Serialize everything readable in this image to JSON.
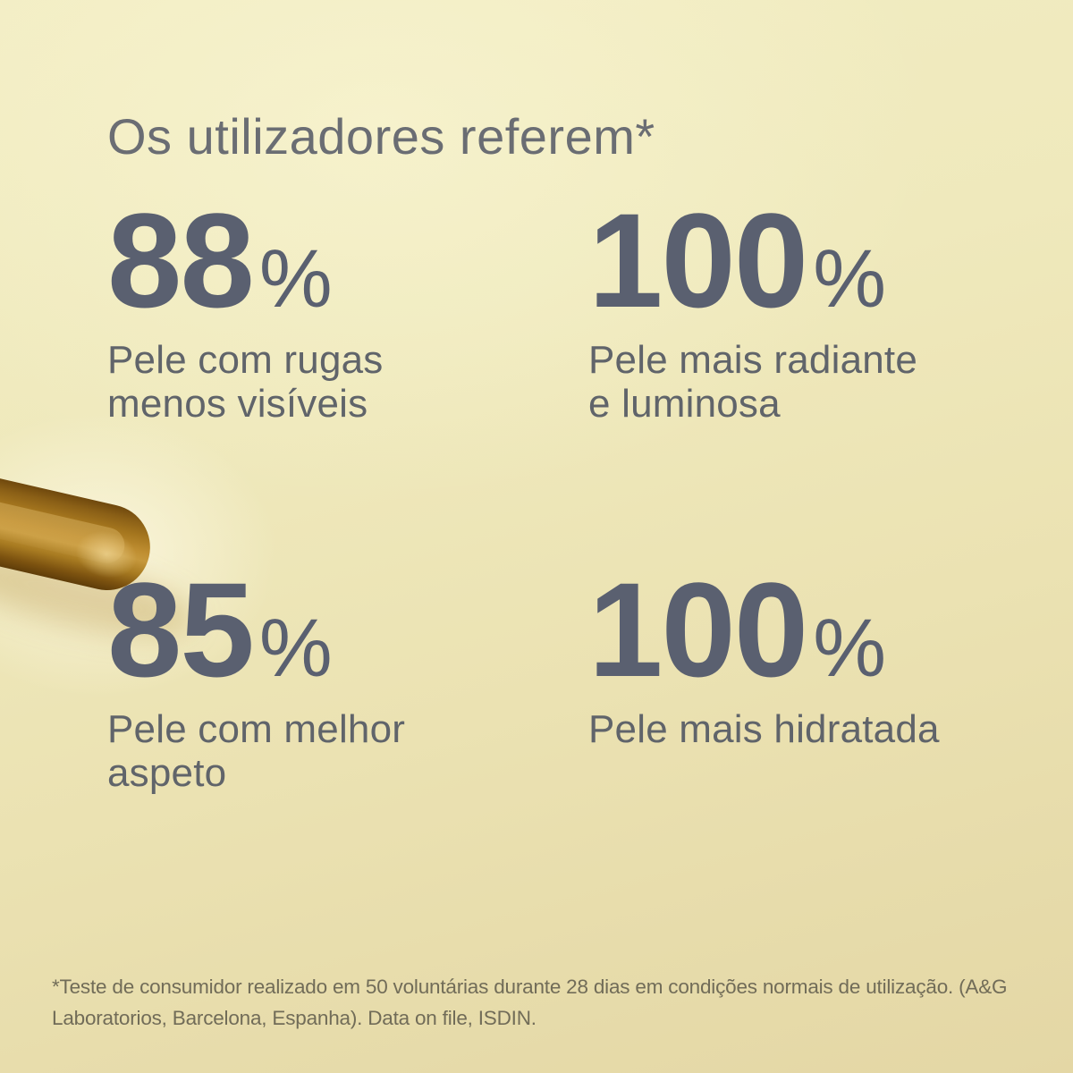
{
  "title": "Os utilizadores referem*",
  "stats": [
    {
      "value": "88",
      "unit": "%",
      "label_lines": [
        "Pele com rugas",
        "menos visíveis"
      ]
    },
    {
      "value": "100",
      "unit": "%",
      "label_lines": [
        "Pele mais radiante",
        "e luminosa"
      ]
    },
    {
      "value": "85",
      "unit": "%",
      "label_lines": [
        "Pele com melhor",
        "aspeto"
      ]
    },
    {
      "value": "100",
      "unit": "%",
      "label_lines": [
        "Pele mais hidratada",
        ""
      ]
    }
  ],
  "footnote_lines": [
    "*Teste de consumidor realizado em 50 voluntárias durante 28 dias em condições normais de utilização. (A&G",
    "Laboratorios, Barcelona, Espanha). Data on file, ISDIN."
  ],
  "images": [
    {
      "name": "dropper-pipette-tip"
    }
  ],
  "colors": {
    "background_top": "#f2edc3",
    "background_bottom": "#e4d7a5",
    "stat_number": "#5a6070",
    "stat_label": "#60646a",
    "title_text": "#6a6d73",
    "footnote_text": "#716c58",
    "dropper_amber": "#a5761e"
  }
}
